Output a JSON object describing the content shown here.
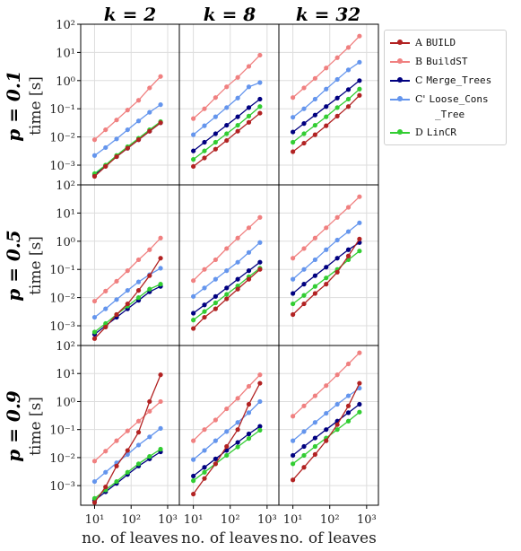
{
  "col_titles": [
    "k = 2",
    "k = 8",
    "k = 32"
  ],
  "row_titles": [
    "p = 0.1",
    "p = 0.5",
    "p = 0.9"
  ],
  "ylabel": "time [s]",
  "xlabel": "no. of leaves",
  "x_ticks": [
    "10¹",
    "10²",
    "10³"
  ],
  "y_ticks": [
    "10⁻³",
    "10⁻²",
    "10⁻¹",
    "10⁰",
    "10¹",
    "10²"
  ],
  "legend": [
    {
      "prefix": "A",
      "name": "BUILD",
      "color": "#b22222"
    },
    {
      "prefix": "B",
      "name": "BuildST",
      "color": "#f08080"
    },
    {
      "prefix": "C",
      "name": "Merge_Trees",
      "color": "#000080"
    },
    {
      "prefix": "C'",
      "name": "Loose_Cons",
      "name2": "_Tree",
      "color": "#6495ed"
    },
    {
      "prefix": "D",
      "name": "LinCR",
      "color": "#32cd32"
    }
  ],
  "chart_data": {
    "type": "line",
    "x_scale": "log",
    "y_scale": "log",
    "x_values": [
      10,
      20,
      40,
      80,
      160,
      320,
      640
    ],
    "ylim": [
      0.0002,
      100
    ],
    "grid": true,
    "legend_position": "right, outside top",
    "panels": [
      {
        "k": 2,
        "p": 0.1,
        "series": {
          "A": [
            0.0004,
            0.0009,
            0.002,
            0.004,
            0.008,
            0.016,
            0.032
          ],
          "B": [
            0.008,
            0.018,
            0.04,
            0.09,
            0.2,
            0.55,
            1.4
          ],
          "C": [
            0.00045,
            0.00095,
            0.002,
            0.004,
            0.008,
            0.016,
            0.032
          ],
          "C'": [
            0.0022,
            0.0042,
            0.0085,
            0.018,
            0.037,
            0.075,
            0.14
          ],
          "D": [
            0.0005,
            0.001,
            0.0022,
            0.0045,
            0.009,
            0.018,
            0.035
          ]
        }
      },
      {
        "k": 8,
        "p": 0.1,
        "series": {
          "A": [
            0.0009,
            0.0018,
            0.0037,
            0.0075,
            0.016,
            0.033,
            0.07
          ],
          "B": [
            0.045,
            0.1,
            0.25,
            0.6,
            1.3,
            3.2,
            8
          ],
          "C": [
            0.0032,
            0.0065,
            0.013,
            0.026,
            0.052,
            0.11,
            0.22
          ],
          "C'": [
            0.012,
            0.025,
            0.052,
            0.11,
            0.24,
            0.6,
            0.85
          ],
          "D": [
            0.0016,
            0.0032,
            0.0065,
            0.013,
            0.026,
            0.055,
            0.12
          ]
        }
      },
      {
        "k": 32,
        "p": 0.1,
        "series": {
          "A": [
            0.003,
            0.006,
            0.012,
            0.025,
            0.055,
            0.12,
            0.3
          ],
          "B": [
            0.25,
            0.55,
            1.2,
            2.8,
            6.5,
            15,
            38
          ],
          "C": [
            0.015,
            0.03,
            0.06,
            0.12,
            0.24,
            0.48,
            1.0
          ],
          "C'": [
            0.05,
            0.1,
            0.22,
            0.5,
            1.1,
            2.4,
            4.5
          ],
          "D": [
            0.0065,
            0.013,
            0.026,
            0.052,
            0.11,
            0.22,
            0.5
          ]
        }
      },
      {
        "k": 2,
        "p": 0.5,
        "series": {
          "A": [
            0.00035,
            0.0009,
            0.0025,
            0.006,
            0.018,
            0.06,
            0.25
          ],
          "B": [
            0.0075,
            0.017,
            0.038,
            0.09,
            0.22,
            0.5,
            1.3
          ],
          "C": [
            0.0005,
            0.001,
            0.002,
            0.004,
            0.008,
            0.016,
            0.025
          ],
          "C'": [
            0.002,
            0.004,
            0.0085,
            0.018,
            0.036,
            0.065,
            0.11
          ],
          "D": [
            0.0006,
            0.0012,
            0.0025,
            0.005,
            0.01,
            0.02,
            0.03
          ]
        }
      },
      {
        "k": 8,
        "p": 0.5,
        "series": {
          "A": [
            0.0008,
            0.002,
            0.004,
            0.009,
            0.02,
            0.045,
            0.1
          ],
          "B": [
            0.04,
            0.1,
            0.22,
            0.55,
            1.3,
            3,
            7
          ],
          "C": [
            0.0028,
            0.0055,
            0.011,
            0.022,
            0.045,
            0.09,
            0.18
          ],
          "C'": [
            0.011,
            0.022,
            0.045,
            0.09,
            0.18,
            0.4,
            0.9
          ],
          "D": [
            0.0016,
            0.0032,
            0.0065,
            0.013,
            0.026,
            0.055,
            0.11
          ]
        }
      },
      {
        "k": 32,
        "p": 0.5,
        "series": {
          "A": [
            0.0025,
            0.006,
            0.014,
            0.03,
            0.08,
            0.3,
            1.2
          ],
          "B": [
            0.25,
            0.55,
            1.3,
            3,
            7,
            16,
            38
          ],
          "C": [
            0.014,
            0.03,
            0.06,
            0.12,
            0.25,
            0.5,
            0.9
          ],
          "C'": [
            0.045,
            0.1,
            0.22,
            0.5,
            1.1,
            2.2,
            4.5
          ],
          "D": [
            0.006,
            0.012,
            0.025,
            0.05,
            0.1,
            0.22,
            0.45
          ]
        }
      },
      {
        "k": 2,
        "p": 0.9,
        "series": {
          "A": [
            0.00025,
            0.0009,
            0.005,
            0.018,
            0.08,
            1.0,
            9
          ],
          "B": [
            0.0075,
            0.017,
            0.04,
            0.09,
            0.2,
            0.45,
            1.0
          ],
          "C": [
            0.0003,
            0.0006,
            0.0012,
            0.0025,
            0.005,
            0.009,
            0.016
          ],
          "C'": [
            0.0014,
            0.003,
            0.0065,
            0.013,
            0.028,
            0.055,
            0.11
          ],
          "D": [
            0.00035,
            0.0007,
            0.0014,
            0.003,
            0.006,
            0.011,
            0.02
          ]
        }
      },
      {
        "k": 8,
        "p": 0.9,
        "series": {
          "A": [
            0.0005,
            0.0018,
            0.006,
            0.025,
            0.1,
            0.8,
            4.5
          ],
          "B": [
            0.04,
            0.1,
            0.22,
            0.55,
            1.3,
            3.5,
            9
          ],
          "C": [
            0.0022,
            0.0045,
            0.009,
            0.018,
            0.035,
            0.07,
            0.13
          ],
          "C'": [
            0.0085,
            0.018,
            0.04,
            0.085,
            0.18,
            0.4,
            1.0
          ],
          "D": [
            0.0015,
            0.003,
            0.006,
            0.012,
            0.024,
            0.048,
            0.095
          ]
        }
      },
      {
        "k": 32,
        "p": 0.9,
        "series": {
          "A": [
            0.0016,
            0.0045,
            0.013,
            0.04,
            0.15,
            0.7,
            4.5
          ],
          "B": [
            0.3,
            0.7,
            1.6,
            3.7,
            9,
            22,
            55
          ],
          "C": [
            0.012,
            0.025,
            0.05,
            0.1,
            0.2,
            0.4,
            0.8
          ],
          "C'": [
            0.04,
            0.085,
            0.18,
            0.38,
            0.8,
            1.6,
            3
          ],
          "D": [
            0.006,
            0.012,
            0.025,
            0.05,
            0.1,
            0.2,
            0.42
          ]
        }
      }
    ]
  }
}
